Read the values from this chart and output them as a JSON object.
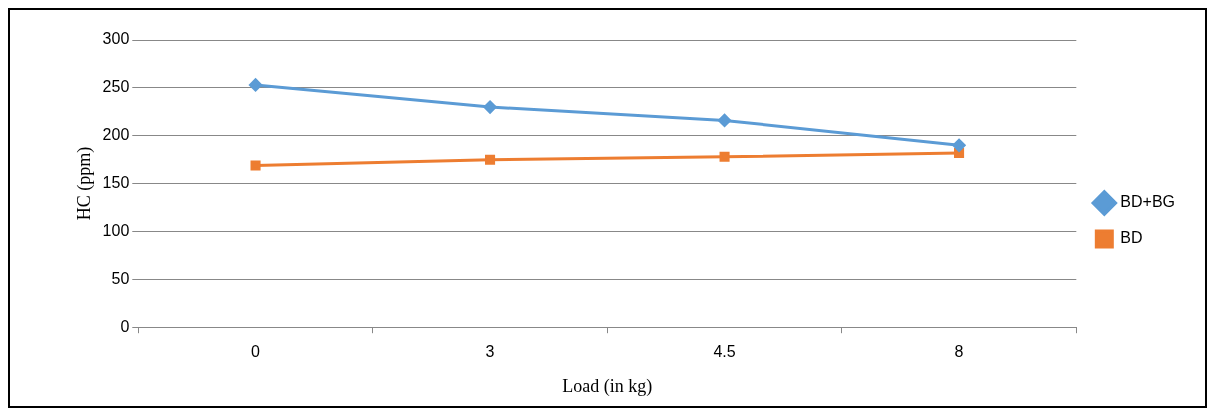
{
  "chart_data": {
    "type": "line",
    "xlabel": "Load (in kg)",
    "ylabel": "HC (ppm)",
    "categories": [
      "0",
      "3",
      "4.5",
      "8"
    ],
    "series": [
      {
        "name": "BD+BG",
        "color": "#5b9bd5",
        "marker": "diamond",
        "values": [
          253,
          230,
          216,
          190
        ]
      },
      {
        "name": "BD",
        "color": "#ed7d31",
        "marker": "square",
        "values": [
          169,
          175,
          178,
          182
        ]
      }
    ],
    "ylim": [
      0,
      300
    ],
    "yticks": [
      0,
      50,
      100,
      150,
      200,
      250,
      300
    ],
    "grid": "y",
    "legend": "right"
  }
}
